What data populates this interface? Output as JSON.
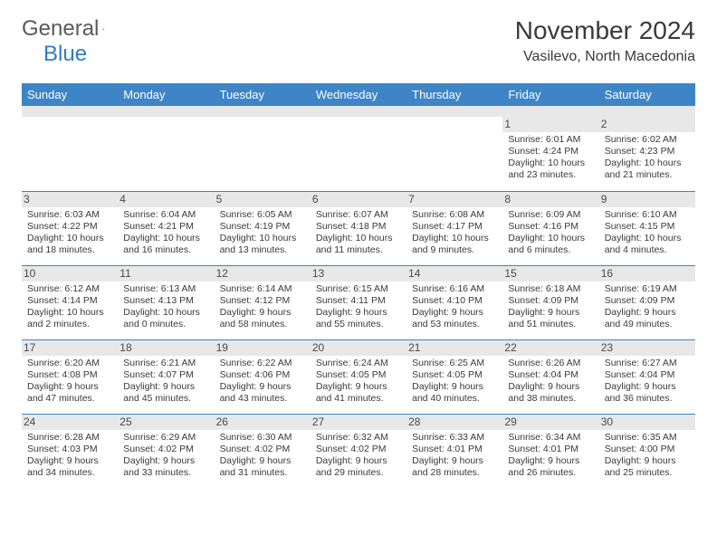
{
  "logo": {
    "part1": "General",
    "part2": "Blue"
  },
  "title": "November 2024",
  "location": "Vasilevo, North Macedonia",
  "colors": {
    "header_bg": "#3d85c6",
    "header_text": "#ffffff",
    "daynum_bg": "#e8e8e8",
    "border": "#3d85c6",
    "text": "#3a3a3a"
  },
  "weekdays": [
    "Sunday",
    "Monday",
    "Tuesday",
    "Wednesday",
    "Thursday",
    "Friday",
    "Saturday"
  ],
  "weeks": [
    [
      null,
      null,
      null,
      null,
      null,
      {
        "n": "1",
        "sr": "6:01 AM",
        "ss": "4:24 PM",
        "dl": "10 hours and 23 minutes."
      },
      {
        "n": "2",
        "sr": "6:02 AM",
        "ss": "4:23 PM",
        "dl": "10 hours and 21 minutes."
      }
    ],
    [
      {
        "n": "3",
        "sr": "6:03 AM",
        "ss": "4:22 PM",
        "dl": "10 hours and 18 minutes."
      },
      {
        "n": "4",
        "sr": "6:04 AM",
        "ss": "4:21 PM",
        "dl": "10 hours and 16 minutes."
      },
      {
        "n": "5",
        "sr": "6:05 AM",
        "ss": "4:19 PM",
        "dl": "10 hours and 13 minutes."
      },
      {
        "n": "6",
        "sr": "6:07 AM",
        "ss": "4:18 PM",
        "dl": "10 hours and 11 minutes."
      },
      {
        "n": "7",
        "sr": "6:08 AM",
        "ss": "4:17 PM",
        "dl": "10 hours and 9 minutes."
      },
      {
        "n": "8",
        "sr": "6:09 AM",
        "ss": "4:16 PM",
        "dl": "10 hours and 6 minutes."
      },
      {
        "n": "9",
        "sr": "6:10 AM",
        "ss": "4:15 PM",
        "dl": "10 hours and 4 minutes."
      }
    ],
    [
      {
        "n": "10",
        "sr": "6:12 AM",
        "ss": "4:14 PM",
        "dl": "10 hours and 2 minutes."
      },
      {
        "n": "11",
        "sr": "6:13 AM",
        "ss": "4:13 PM",
        "dl": "10 hours and 0 minutes."
      },
      {
        "n": "12",
        "sr": "6:14 AM",
        "ss": "4:12 PM",
        "dl": "9 hours and 58 minutes."
      },
      {
        "n": "13",
        "sr": "6:15 AM",
        "ss": "4:11 PM",
        "dl": "9 hours and 55 minutes."
      },
      {
        "n": "14",
        "sr": "6:16 AM",
        "ss": "4:10 PM",
        "dl": "9 hours and 53 minutes."
      },
      {
        "n": "15",
        "sr": "6:18 AM",
        "ss": "4:09 PM",
        "dl": "9 hours and 51 minutes."
      },
      {
        "n": "16",
        "sr": "6:19 AM",
        "ss": "4:09 PM",
        "dl": "9 hours and 49 minutes."
      }
    ],
    [
      {
        "n": "17",
        "sr": "6:20 AM",
        "ss": "4:08 PM",
        "dl": "9 hours and 47 minutes."
      },
      {
        "n": "18",
        "sr": "6:21 AM",
        "ss": "4:07 PM",
        "dl": "9 hours and 45 minutes."
      },
      {
        "n": "19",
        "sr": "6:22 AM",
        "ss": "4:06 PM",
        "dl": "9 hours and 43 minutes."
      },
      {
        "n": "20",
        "sr": "6:24 AM",
        "ss": "4:05 PM",
        "dl": "9 hours and 41 minutes."
      },
      {
        "n": "21",
        "sr": "6:25 AM",
        "ss": "4:05 PM",
        "dl": "9 hours and 40 minutes."
      },
      {
        "n": "22",
        "sr": "6:26 AM",
        "ss": "4:04 PM",
        "dl": "9 hours and 38 minutes."
      },
      {
        "n": "23",
        "sr": "6:27 AM",
        "ss": "4:04 PM",
        "dl": "9 hours and 36 minutes."
      }
    ],
    [
      {
        "n": "24",
        "sr": "6:28 AM",
        "ss": "4:03 PM",
        "dl": "9 hours and 34 minutes."
      },
      {
        "n": "25",
        "sr": "6:29 AM",
        "ss": "4:02 PM",
        "dl": "9 hours and 33 minutes."
      },
      {
        "n": "26",
        "sr": "6:30 AM",
        "ss": "4:02 PM",
        "dl": "9 hours and 31 minutes."
      },
      {
        "n": "27",
        "sr": "6:32 AM",
        "ss": "4:02 PM",
        "dl": "9 hours and 29 minutes."
      },
      {
        "n": "28",
        "sr": "6:33 AM",
        "ss": "4:01 PM",
        "dl": "9 hours and 28 minutes."
      },
      {
        "n": "29",
        "sr": "6:34 AM",
        "ss": "4:01 PM",
        "dl": "9 hours and 26 minutes."
      },
      {
        "n": "30",
        "sr": "6:35 AM",
        "ss": "4:00 PM",
        "dl": "9 hours and 25 minutes."
      }
    ]
  ],
  "labels": {
    "sunrise": "Sunrise: ",
    "sunset": "Sunset: ",
    "daylight": "Daylight: "
  }
}
